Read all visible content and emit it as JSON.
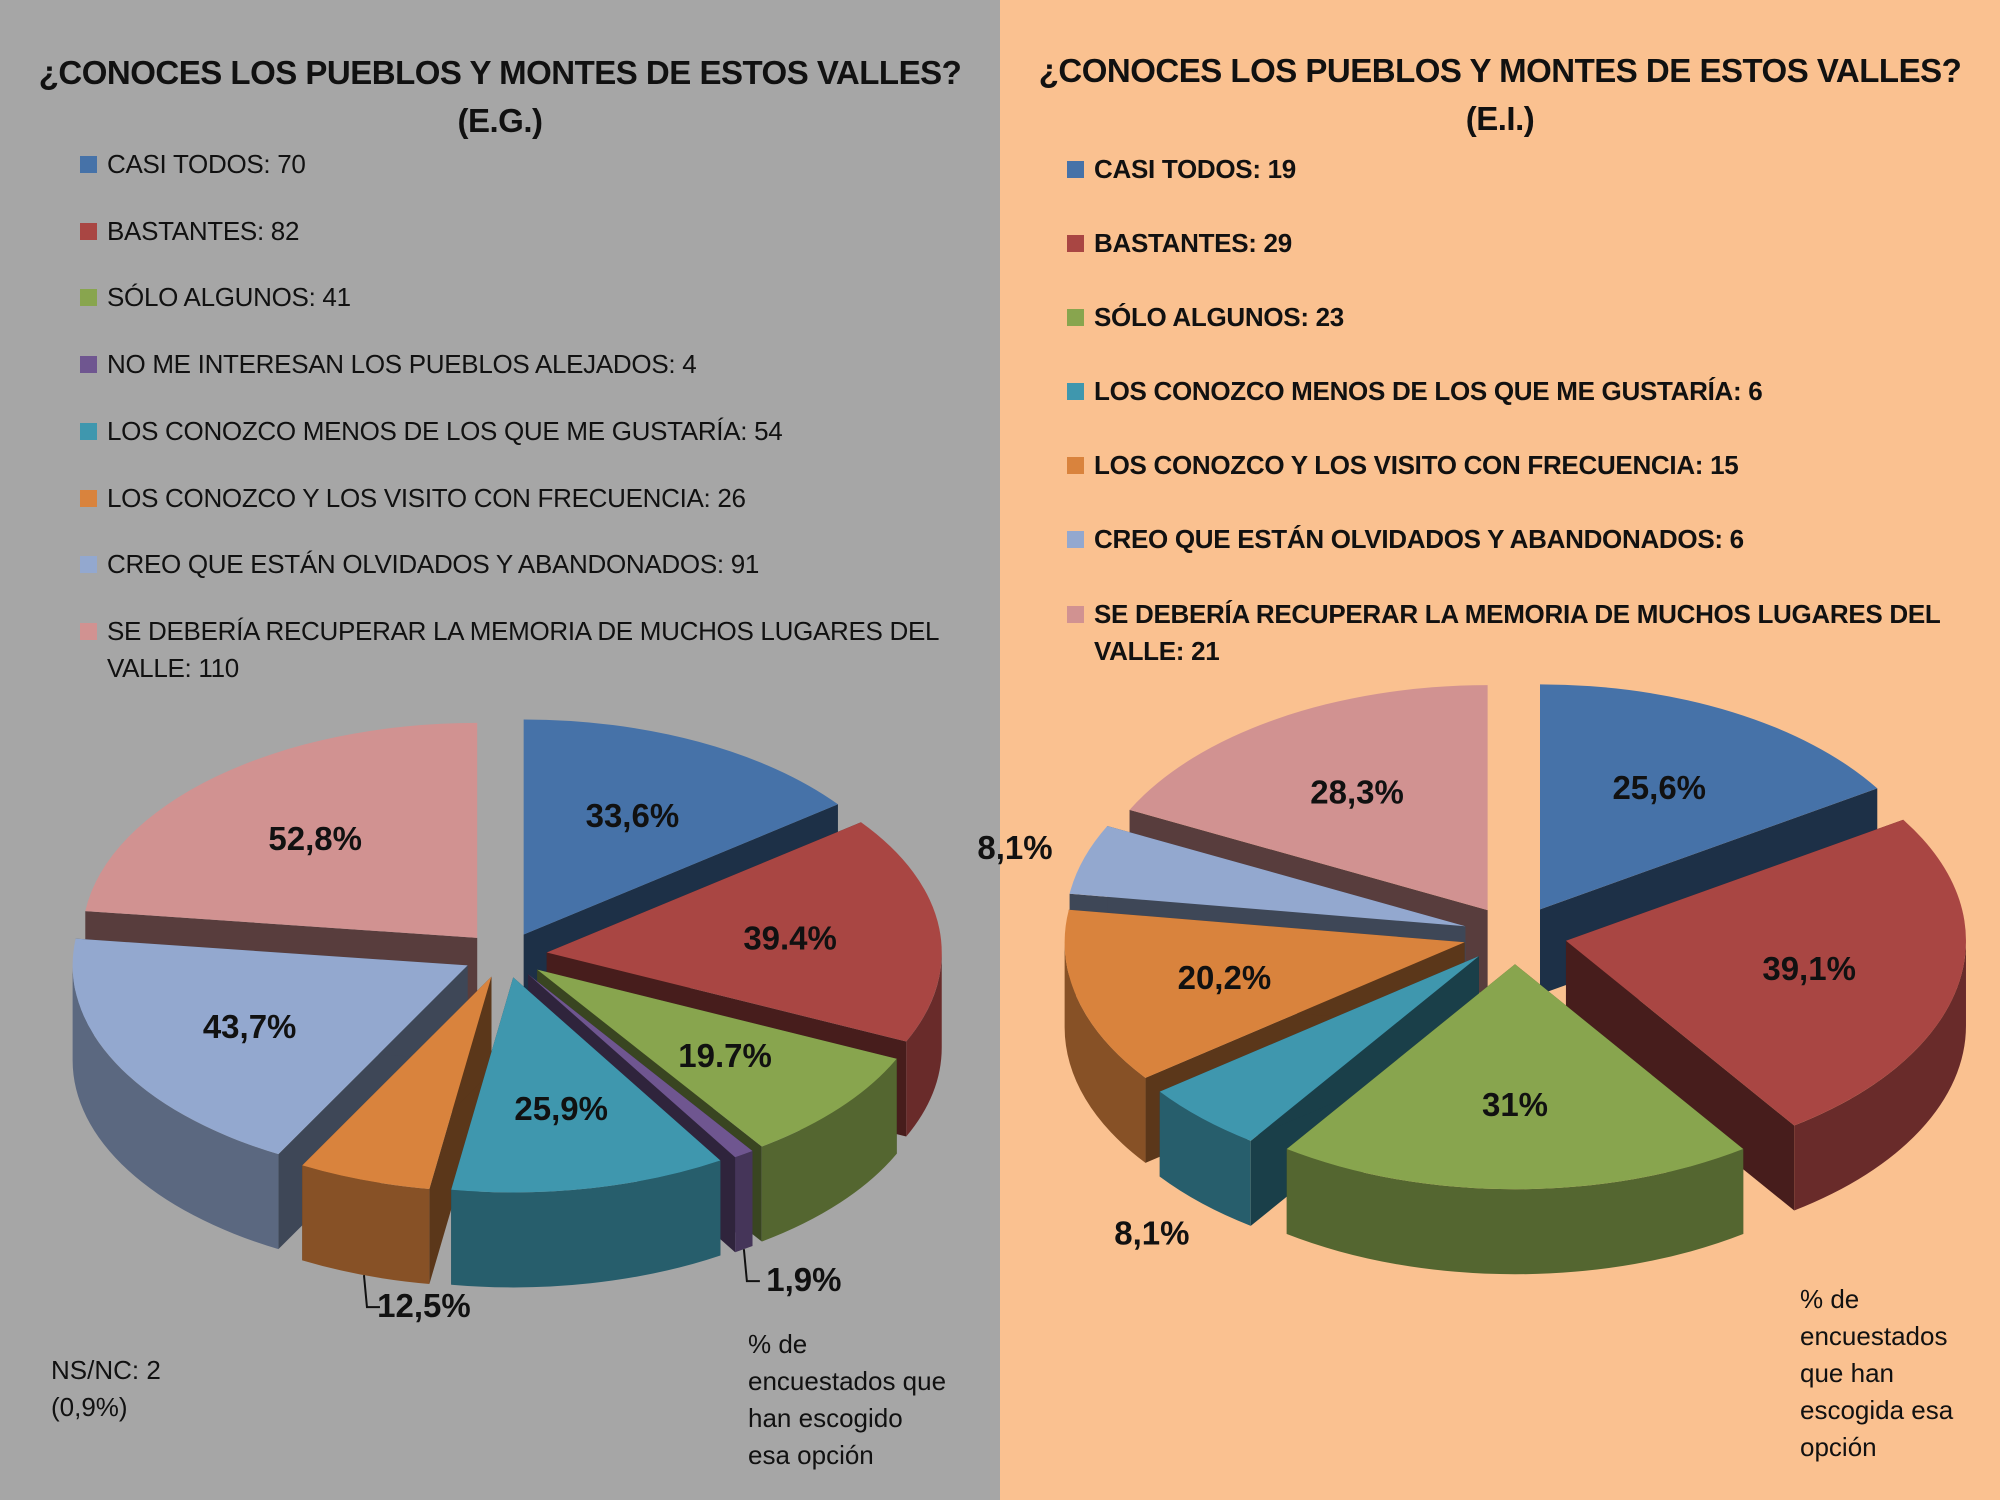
{
  "chart_data": [
    {
      "type": "pie",
      "title": "¿CONOCES LOS PUEBLOS Y MONTES DE ESTOS VALLES?",
      "subtitle": "(E.G.)",
      "legend_placement": "top",
      "categories": [
        "CASI TODOS",
        "BASTANTES",
        "SÓLO ALGUNOS",
        "NO ME INTERESAN LOS PUEBLOS ALEJADOS",
        "LOS CONOZCO MENOS DE LOS QUE ME GUSTARÍA",
        "LOS CONOZCO Y LOS VISITO CON FRECUENCIA",
        "CREO QUE ESTÁN OLVIDADOS Y ABANDONADOS",
        "SE DEBERÍA RECUPERAR LA MEMORIA DE MUCHOS LUGARES DEL VALLE"
      ],
      "legend_labels": [
        "CASI TODOS: 70",
        "BASTANTES: 82",
        "SÓLO ALGUNOS: 41",
        "NO ME INTERESAN LOS PUEBLOS ALEJADOS: 4",
        "LOS CONOZCO MENOS DE LOS QUE ME GUSTARÍA: 54",
        "LOS CONOZCO Y LOS VISITO CON FRECUENCIA: 26",
        "CREO QUE ESTÁN OLVIDADOS Y ABANDONADOS: 91",
        "SE DEBERÍA RECUPERAR LA MEMORIA DE MUCHOS LUGARES DEL VALLE: 110"
      ],
      "values": [
        70,
        82,
        41,
        4,
        54,
        26,
        91,
        110
      ],
      "data_labels": [
        "33,6%",
        "39.4%",
        "19.7%",
        "1,9%",
        "25,9%",
        "12,5%",
        "43,7%",
        "52,8%"
      ],
      "percentages": [
        33.6,
        39.4,
        19.7,
        1.9,
        25.9,
        12.5,
        43.7,
        52.8
      ],
      "colors": [
        "#4672a8",
        "#a94643",
        "#88a54e",
        "#6f5690",
        "#3f97ae",
        "#d9833d",
        "#93a8cf",
        "#d19291"
      ],
      "note": [
        "% de",
        "encuestados que",
        "han escogido",
        "esa opción"
      ],
      "nsnc": [
        "NS/NC: 2",
        "(0,9%)"
      ]
    },
    {
      "type": "pie",
      "title": "¿CONOCES LOS PUEBLOS Y MONTES DE ESTOS VALLES?",
      "subtitle": "(E.I.)",
      "legend_placement": "top",
      "categories": [
        "CASI TODOS",
        "BASTANTES",
        "SÓLO ALGUNOS",
        "LOS CONOZCO MENOS DE LOS QUE ME GUSTARÍA",
        "LOS CONOZCO Y LOS VISITO CON FRECUENCIA",
        "CREO QUE ESTÁN OLVIDADOS Y ABANDONADOS",
        "SE DEBERÍA RECUPERAR LA MEMORIA DE MUCHOS LUGARES DEL VALLE"
      ],
      "legend_labels": [
        "CASI TODOS: 19",
        "BASTANTES: 29",
        "SÓLO ALGUNOS: 23",
        "LOS CONOZCO MENOS DE LOS QUE ME GUSTARÍA: 6",
        "LOS CONOZCO Y LOS VISITO CON FRECUENCIA: 15",
        "CREO QUE ESTÁN OLVIDADOS Y ABANDONADOS: 6",
        "SE DEBERÍA RECUPERAR LA MEMORIA DE MUCHOS LUGARES DEL VALLE: 21"
      ],
      "values": [
        19,
        29,
        23,
        6,
        15,
        6,
        21
      ],
      "data_labels": [
        "25,6%",
        "39,1%",
        "31%",
        "8,1%",
        "20,2%",
        "8,1%",
        "28,3%"
      ],
      "percentages": [
        25.6,
        39.1,
        31,
        8.1,
        20.2,
        8.1,
        28.3
      ],
      "colors": [
        "#4672a8",
        "#a94643",
        "#88a54e",
        "#3f97ae",
        "#d9833d",
        "#93a8cf",
        "#d19291"
      ],
      "note": [
        "% de",
        "encuestados",
        "que han",
        "escogida esa",
        "opción"
      ]
    }
  ]
}
